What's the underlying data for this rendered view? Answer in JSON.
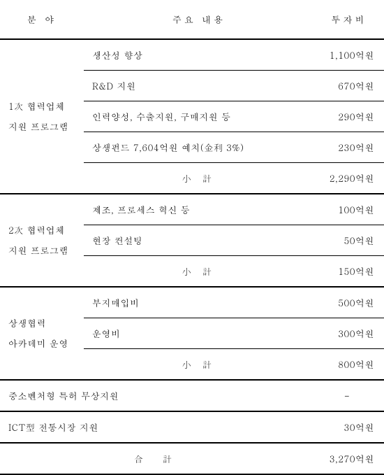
{
  "header": {
    "col1": "분 야",
    "col2": "주요 내용",
    "col3": "투자비"
  },
  "sections": {
    "s1": {
      "category_l1": "1次 협력업체",
      "category_l2": "지원 프로그램",
      "r1_content": "생산성 향상",
      "r1_amount": "1,100억원",
      "r2_content": "R&D 지원",
      "r2_amount": "670억원",
      "r3_content": "인력양성, 수출지원, 구매지원 등",
      "r3_amount": "290억원",
      "r4_content": "상생펀드 7,604억원 예치(金利 3%)",
      "r4_amount": "230억원",
      "sub_label": "小 計",
      "sub_amount": "2,290억원"
    },
    "s2": {
      "category_l1": "2次 협력업체",
      "category_l2": "지원 프로그램",
      "r1_content": "제조, 프로세스 혁신 등",
      "r1_amount": "100억원",
      "r2_content": "현장 컨설팅",
      "r2_amount": "50억원",
      "sub_label": "小 計",
      "sub_amount": "150억원"
    },
    "s3": {
      "category_l1": "상생협력",
      "category_l2": "아카데미 운영",
      "r1_content": "부지매입비",
      "r1_amount": "500억원",
      "r2_content": "운영비",
      "r2_amount": "300억원",
      "sub_label": "小 計",
      "sub_amount": "800억원"
    },
    "s4": {
      "label": "중소벤처형 특허 무상지원",
      "amount": "-"
    },
    "s5": {
      "label": "ICT型 전통시장 지원",
      "amount": "30억원"
    }
  },
  "total": {
    "label": "合 計",
    "amount": "3,270억원"
  }
}
